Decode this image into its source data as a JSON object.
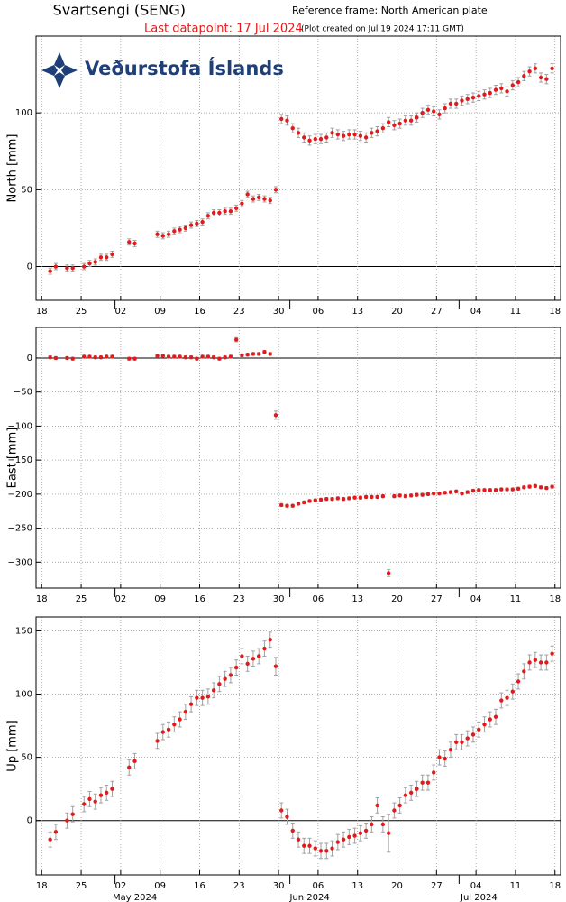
{
  "header": {
    "title": "Svartsengi (SENG)",
    "reference": "Reference frame: North American plate",
    "last": "Last datapoint: 17 Jul 2024",
    "created": "(Plot created on Jul 19 2024 17:11 GMT)",
    "logo": "Veðurstofa Íslands"
  },
  "chart_data": [
    {
      "type": "scatter",
      "ylabel": "North [mm]",
      "color": "#e31a1c",
      "error_color": "#a0a0a0",
      "grid": true,
      "xlim": [
        "2024-04-17",
        "2024-07-19"
      ],
      "xticks": [
        {
          "value": "2024-04-18",
          "label": "18"
        },
        {
          "value": "2024-04-25",
          "label": "25"
        },
        {
          "value": "2024-05-02",
          "label": "02"
        },
        {
          "value": "2024-05-09",
          "label": "09"
        },
        {
          "value": "2024-05-16",
          "label": "16"
        },
        {
          "value": "2024-05-23",
          "label": "23"
        },
        {
          "value": "2024-05-30",
          "label": "30"
        },
        {
          "value": "2024-06-06",
          "label": "06"
        },
        {
          "value": "2024-06-13",
          "label": "13"
        },
        {
          "value": "2024-06-20",
          "label": "20"
        },
        {
          "value": "2024-06-27",
          "label": "27"
        },
        {
          "value": "2024-07-04",
          "label": "04"
        },
        {
          "value": "2024-07-11",
          "label": "11"
        },
        {
          "value": "2024-07-18",
          "label": "18"
        }
      ],
      "month_ticks": [
        "2024-05-01",
        "2024-06-01",
        "2024-07-01"
      ],
      "ylim": [
        -22,
        150
      ],
      "yticks": [
        0,
        50,
        100
      ],
      "x": [
        "2024-04-19",
        "2024-04-20",
        "2024-04-22",
        "2024-04-23",
        "2024-04-25",
        "2024-04-26",
        "2024-04-27",
        "2024-04-28",
        "2024-04-29",
        "2024-04-30",
        "2024-05-03",
        "2024-05-04",
        "2024-05-08",
        "2024-05-09",
        "2024-05-10",
        "2024-05-11",
        "2024-05-12",
        "2024-05-13",
        "2024-05-14",
        "2024-05-15",
        "2024-05-16",
        "2024-05-17",
        "2024-05-18",
        "2024-05-19",
        "2024-05-20",
        "2024-05-21",
        "2024-05-22",
        "2024-05-23",
        "2024-05-24",
        "2024-05-25",
        "2024-05-26",
        "2024-05-27",
        "2024-05-28",
        "2024-05-29",
        "2024-05-30",
        "2024-05-31",
        "2024-06-01",
        "2024-06-02",
        "2024-06-03",
        "2024-06-04",
        "2024-06-05",
        "2024-06-06",
        "2024-06-07",
        "2024-06-08",
        "2024-06-09",
        "2024-06-10",
        "2024-06-11",
        "2024-06-12",
        "2024-06-13",
        "2024-06-14",
        "2024-06-15",
        "2024-06-16",
        "2024-06-17",
        "2024-06-18",
        "2024-06-19",
        "2024-06-20",
        "2024-06-21",
        "2024-06-22",
        "2024-06-23",
        "2024-06-24",
        "2024-06-25",
        "2024-06-26",
        "2024-06-27",
        "2024-06-28",
        "2024-06-29",
        "2024-06-30",
        "2024-07-01",
        "2024-07-02",
        "2024-07-03",
        "2024-07-04",
        "2024-07-05",
        "2024-07-06",
        "2024-07-07",
        "2024-07-08",
        "2024-07-09",
        "2024-07-10",
        "2024-07-11",
        "2024-07-12",
        "2024-07-13",
        "2024-07-14",
        "2024-07-15",
        "2024-07-16",
        "2024-07-17"
      ],
      "values": [
        -3,
        0,
        -1,
        -1,
        0,
        2,
        3,
        6,
        6,
        8,
        16,
        15,
        21,
        20,
        21,
        23,
        24,
        25,
        27,
        28,
        29,
        33,
        35,
        35,
        36,
        36,
        38,
        41,
        47,
        44,
        45,
        44,
        43,
        50,
        96,
        95,
        90,
        87,
        84,
        82,
        83,
        83,
        84,
        87,
        86,
        85,
        86,
        86,
        85,
        84,
        87,
        88,
        90,
        94,
        92,
        93,
        95,
        95,
        97,
        100,
        102,
        101,
        99,
        103,
        106,
        106,
        108,
        109,
        110,
        111,
        112,
        113,
        115,
        116,
        114,
        118,
        120,
        124,
        127,
        129,
        123,
        122,
        129
      ],
      "errors": [
        2,
        2,
        2,
        2,
        2,
        2,
        2,
        2,
        2,
        2,
        2,
        2,
        2,
        2,
        2,
        2,
        2,
        2,
        2,
        2,
        2,
        2,
        2,
        2,
        2,
        2,
        2,
        2,
        2,
        2,
        2,
        2,
        2,
        2,
        3,
        3,
        3,
        3,
        3,
        3,
        3,
        3,
        3,
        3,
        3,
        3,
        3,
        3,
        3,
        3,
        3,
        3,
        3,
        3,
        3,
        3,
        3,
        3,
        3,
        3,
        3,
        3,
        3,
        3,
        3,
        3,
        3,
        3,
        3,
        3,
        3,
        3,
        3,
        3,
        3,
        3,
        3,
        3,
        3,
        3,
        3,
        3,
        3
      ]
    },
    {
      "type": "scatter",
      "ylabel": "East [mm]",
      "color": "#e31a1c",
      "error_color": "#a0a0a0",
      "grid": true,
      "xlim": [
        "2024-04-17",
        "2024-07-19"
      ],
      "xticks": [
        {
          "value": "2024-04-18",
          "label": "18"
        },
        {
          "value": "2024-04-25",
          "label": "25"
        },
        {
          "value": "2024-05-02",
          "label": "02"
        },
        {
          "value": "2024-05-09",
          "label": "09"
        },
        {
          "value": "2024-05-16",
          "label": "16"
        },
        {
          "value": "2024-05-23",
          "label": "23"
        },
        {
          "value": "2024-05-30",
          "label": "30"
        },
        {
          "value": "2024-06-06",
          "label": "06"
        },
        {
          "value": "2024-06-13",
          "label": "13"
        },
        {
          "value": "2024-06-20",
          "label": "20"
        },
        {
          "value": "2024-06-27",
          "label": "27"
        },
        {
          "value": "2024-07-04",
          "label": "04"
        },
        {
          "value": "2024-07-11",
          "label": "11"
        },
        {
          "value": "2024-07-18",
          "label": "18"
        }
      ],
      "month_ticks": [
        "2024-05-01",
        "2024-06-01",
        "2024-07-01"
      ],
      "ylim": [
        -338,
        45
      ],
      "yticks": [
        0,
        {
          "value": -50,
          "label": "−50"
        },
        {
          "value": -100,
          "label": "−100"
        },
        {
          "value": -150,
          "label": "−150"
        },
        {
          "value": -200,
          "label": "−200"
        },
        {
          "value": -250,
          "label": "−250"
        },
        {
          "value": -300,
          "label": "−300"
        }
      ],
      "x": [
        "2024-04-19",
        "2024-04-20",
        "2024-04-22",
        "2024-04-23",
        "2024-04-25",
        "2024-04-26",
        "2024-04-27",
        "2024-04-28",
        "2024-04-29",
        "2024-04-30",
        "2024-05-03",
        "2024-05-04",
        "2024-05-08",
        "2024-05-09",
        "2024-05-10",
        "2024-05-11",
        "2024-05-12",
        "2024-05-13",
        "2024-05-14",
        "2024-05-15",
        "2024-05-16",
        "2024-05-17",
        "2024-05-18",
        "2024-05-19",
        "2024-05-20",
        "2024-05-21",
        "2024-05-22",
        "2024-05-23",
        "2024-05-24",
        "2024-05-25",
        "2024-05-26",
        "2024-05-27",
        "2024-05-28",
        "2024-05-29",
        "2024-05-30",
        "2024-05-31",
        "2024-06-01",
        "2024-06-02",
        "2024-06-03",
        "2024-06-04",
        "2024-06-05",
        "2024-06-06",
        "2024-06-07",
        "2024-06-08",
        "2024-06-09",
        "2024-06-10",
        "2024-06-11",
        "2024-06-12",
        "2024-06-13",
        "2024-06-14",
        "2024-06-15",
        "2024-06-16",
        "2024-06-17",
        "2024-06-18",
        "2024-06-19",
        "2024-06-20",
        "2024-06-21",
        "2024-06-22",
        "2024-06-23",
        "2024-06-24",
        "2024-06-25",
        "2024-06-26",
        "2024-06-27",
        "2024-06-28",
        "2024-06-29",
        "2024-06-30",
        "2024-07-01",
        "2024-07-02",
        "2024-07-03",
        "2024-07-04",
        "2024-07-05",
        "2024-07-06",
        "2024-07-07",
        "2024-07-08",
        "2024-07-09",
        "2024-07-10",
        "2024-07-11",
        "2024-07-12",
        "2024-07-13",
        "2024-07-14",
        "2024-07-15",
        "2024-07-16",
        "2024-07-17"
      ],
      "values": [
        1,
        0,
        0,
        -1,
        2,
        2,
        1,
        1,
        2,
        2,
        -1,
        -1,
        3,
        3,
        2,
        2,
        2,
        1,
        1,
        -1,
        2,
        2,
        1,
        -1,
        1,
        2,
        27,
        4,
        5,
        6,
        6,
        9,
        6,
        -84,
        -216,
        -217,
        -217,
        -214,
        -212,
        -210,
        -209,
        -208,
        -207,
        -207,
        -206,
        -207,
        -206,
        -205,
        -205,
        -204,
        -204,
        -204,
        -203,
        -316,
        -203,
        -202,
        -203,
        -202,
        -201,
        -201,
        -200,
        -199,
        -199,
        -198,
        -197,
        -196,
        -199,
        -197,
        -195,
        -194,
        -194,
        -194,
        -194,
        -193,
        -193,
        -193,
        -192,
        -190,
        -189,
        -188,
        -190,
        -191,
        -189
      ],
      "errors": [
        2,
        2,
        2,
        2,
        2,
        2,
        2,
        2,
        2,
        2,
        2,
        2,
        2,
        2,
        2,
        2,
        2,
        2,
        2,
        2,
        2,
        2,
        2,
        2,
        2,
        2,
        3,
        2,
        2,
        2,
        2,
        2,
        2,
        6,
        2,
        2,
        2,
        2,
        2,
        2,
        2,
        2,
        2,
        2,
        2,
        2,
        2,
        2,
        2,
        2,
        2,
        2,
        2,
        5,
        2,
        2,
        2,
        2,
        2,
        2,
        2,
        2,
        2,
        2,
        2,
        2,
        2,
        2,
        2,
        2,
        2,
        2,
        2,
        2,
        2,
        2,
        2,
        2,
        2,
        2,
        2,
        2,
        2
      ]
    },
    {
      "type": "scatter",
      "ylabel": "Up [mm]",
      "color": "#e31a1c",
      "error_color": "#a0a0a0",
      "grid": true,
      "xlim": [
        "2024-04-17",
        "2024-07-19"
      ],
      "xticks": [
        {
          "value": "2024-04-18",
          "label": "18"
        },
        {
          "value": "2024-04-25",
          "label": "25"
        },
        {
          "value": "2024-05-02",
          "label": "02"
        },
        {
          "value": "2024-05-09",
          "label": "09"
        },
        {
          "value": "2024-05-16",
          "label": "16"
        },
        {
          "value": "2024-05-23",
          "label": "23"
        },
        {
          "value": "2024-05-30",
          "label": "30"
        },
        {
          "value": "2024-06-06",
          "label": "06"
        },
        {
          "value": "2024-06-13",
          "label": "13"
        },
        {
          "value": "2024-06-20",
          "label": "20"
        },
        {
          "value": "2024-06-27",
          "label": "27"
        },
        {
          "value": "2024-07-04",
          "label": "04"
        },
        {
          "value": "2024-07-11",
          "label": "11"
        },
        {
          "value": "2024-07-18",
          "label": "18"
        }
      ],
      "month_ticks": [
        {
          "value": "2024-05-01",
          "label": "May 2024"
        },
        {
          "value": "2024-06-01",
          "label": "Jun 2024"
        },
        {
          "value": "2024-07-01",
          "label": "Jul 2024"
        }
      ],
      "ylim": [
        -43,
        161
      ],
      "yticks": [
        0,
        50,
        100,
        150
      ],
      "x": [
        "2024-04-19",
        "2024-04-20",
        "2024-04-22",
        "2024-04-23",
        "2024-04-25",
        "2024-04-26",
        "2024-04-27",
        "2024-04-28",
        "2024-04-29",
        "2024-04-30",
        "2024-05-03",
        "2024-05-04",
        "2024-05-08",
        "2024-05-09",
        "2024-05-10",
        "2024-05-11",
        "2024-05-12",
        "2024-05-13",
        "2024-05-14",
        "2024-05-15",
        "2024-05-16",
        "2024-05-17",
        "2024-05-18",
        "2024-05-19",
        "2024-05-20",
        "2024-05-21",
        "2024-05-22",
        "2024-05-23",
        "2024-05-24",
        "2024-05-25",
        "2024-05-26",
        "2024-05-27",
        "2024-05-28",
        "2024-05-29",
        "2024-05-30",
        "2024-05-31",
        "2024-06-01",
        "2024-06-02",
        "2024-06-03",
        "2024-06-04",
        "2024-06-05",
        "2024-06-06",
        "2024-06-07",
        "2024-06-08",
        "2024-06-09",
        "2024-06-10",
        "2024-06-11",
        "2024-06-12",
        "2024-06-13",
        "2024-06-14",
        "2024-06-15",
        "2024-06-16",
        "2024-06-17",
        "2024-06-18",
        "2024-06-19",
        "2024-06-20",
        "2024-06-21",
        "2024-06-22",
        "2024-06-23",
        "2024-06-24",
        "2024-06-25",
        "2024-06-26",
        "2024-06-27",
        "2024-06-28",
        "2024-06-29",
        "2024-06-30",
        "2024-07-01",
        "2024-07-02",
        "2024-07-03",
        "2024-07-04",
        "2024-07-05",
        "2024-07-06",
        "2024-07-07",
        "2024-07-08",
        "2024-07-09",
        "2024-07-10",
        "2024-07-11",
        "2024-07-12",
        "2024-07-13",
        "2024-07-14",
        "2024-07-15",
        "2024-07-16",
        "2024-07-17"
      ],
      "values": [
        -15,
        -9,
        0,
        5,
        13,
        17,
        15,
        20,
        22,
        25,
        42,
        47,
        63,
        70,
        72,
        76,
        80,
        86,
        92,
        97,
        97,
        98,
        103,
        108,
        112,
        115,
        121,
        130,
        124,
        128,
        130,
        136,
        143,
        122,
        8,
        3,
        -8,
        -15,
        -20,
        -20,
        -22,
        -24,
        -24,
        -22,
        -17,
        -15,
        -13,
        -12,
        -10,
        -8,
        -3,
        12,
        -3,
        -10,
        8,
        12,
        20,
        22,
        25,
        30,
        30,
        38,
        50,
        49,
        56,
        62,
        62,
        65,
        68,
        72,
        76,
        80,
        82,
        95,
        97,
        102,
        110,
        118,
        125,
        127,
        125,
        125,
        132
      ],
      "errors": [
        6,
        6,
        6,
        6,
        6,
        6,
        6,
        6,
        6,
        6,
        6,
        6,
        6,
        6,
        6,
        6,
        6,
        6,
        6,
        6,
        6,
        6,
        6,
        6,
        6,
        6,
        6,
        6,
        6,
        6,
        6,
        6,
        6,
        7,
        6,
        6,
        6,
        6,
        6,
        6,
        6,
        6,
        6,
        6,
        6,
        6,
        6,
        6,
        6,
        6,
        6,
        6,
        6,
        15,
        6,
        6,
        6,
        6,
        6,
        6,
        6,
        6,
        6,
        6,
        6,
        6,
        6,
        6,
        6,
        6,
        6,
        6,
        6,
        6,
        6,
        6,
        6,
        6,
        6,
        6,
        6,
        6,
        6
      ]
    }
  ]
}
